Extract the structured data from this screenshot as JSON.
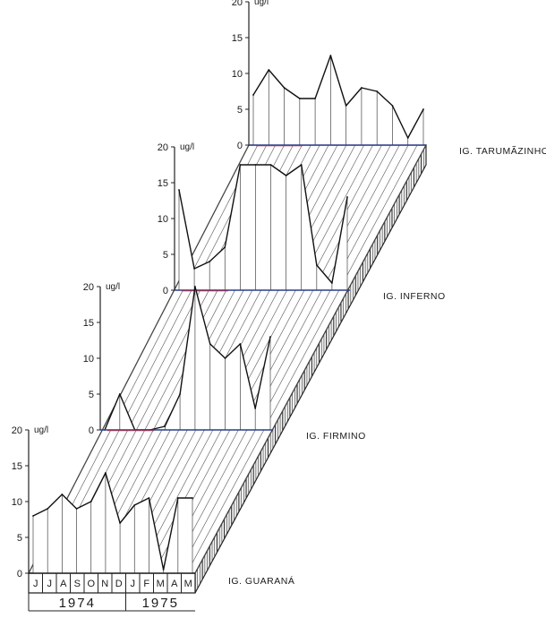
{
  "chart_data": {
    "type": "line",
    "unit": "ug/l",
    "ylim": [
      0,
      20
    ],
    "y_ticks": [
      "0",
      "5",
      "10",
      "15",
      "20"
    ],
    "categories": [
      "J",
      "J",
      "A",
      "S",
      "O",
      "N",
      "D",
      "J",
      "F",
      "M",
      "A",
      "M"
    ],
    "years": [
      {
        "label": "1974",
        "span": [
          0,
          6
        ]
      },
      {
        "label": "1975",
        "span": [
          7,
          11
        ]
      }
    ],
    "series": [
      {
        "name": "IG. GUARANÁ",
        "values": [
          8,
          9,
          11,
          9,
          10,
          14,
          7,
          9.5,
          10.5,
          0.5,
          10.5,
          10.5
        ]
      },
      {
        "name": "IG. FIRMINO",
        "values": [
          0,
          5,
          0,
          0,
          0.5,
          5,
          20,
          12,
          10,
          12,
          3,
          13
        ]
      },
      {
        "name": "IG. INFERNO",
        "values": [
          14,
          3,
          4,
          6,
          17.5,
          17.5,
          17.5,
          16,
          17.5,
          3.5,
          1,
          13
        ]
      },
      {
        "name": "IG. TARUMÃZINHO",
        "values": [
          7,
          10.5,
          8,
          6.5,
          6.5,
          12.5,
          5.5,
          8,
          7.5,
          5.5,
          1,
          5
        ]
      }
    ]
  }
}
